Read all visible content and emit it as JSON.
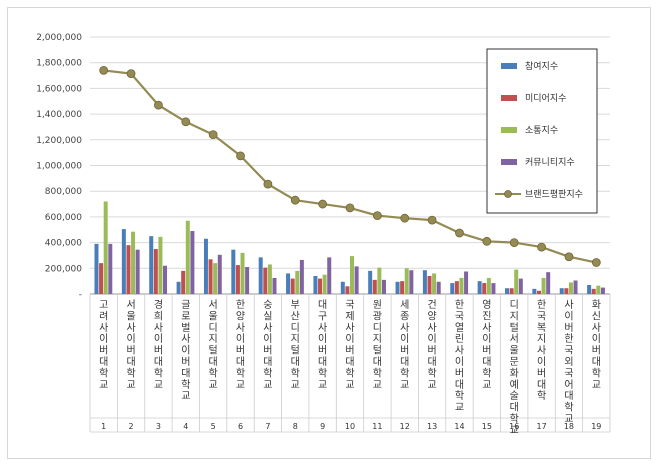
{
  "chart_data": {
    "type": "bar",
    "title": "",
    "xlabel": "",
    "ylabel": "",
    "ylim": [
      0,
      2000000
    ],
    "y_ticks": [
      "-",
      "200,000",
      "400,000",
      "600,000",
      "800,000",
      "1,000,000",
      "1,200,000",
      "1,400,000",
      "1,600,000",
      "1,800,000",
      "2,000,000"
    ],
    "grid": true,
    "legend_position": "right",
    "categories": [
      "고려사이버대학교",
      "서울사이버대학교",
      "경희사이버대학교",
      "글로벌사이버대학교",
      "서울디지털대학교",
      "한양사이버대학교",
      "숭실사이버대학교",
      "부산디지털대학교",
      "대구사이버대학교",
      "국제사이버대학교",
      "원광디지털대학교",
      "세종사이버대학교",
      "건양사이버대학교",
      "한국열린사이버대학교",
      "영진사이버대학교",
      "디지털서울문화예술대학교",
      "한국복지사이버대학",
      "사이버한국외국어대학교",
      "화신사이버대학교"
    ],
    "index_labels": [
      "1",
      "2",
      "3",
      "4",
      "5",
      "6",
      "7",
      "8",
      "9",
      "10",
      "11",
      "12",
      "13",
      "14",
      "15",
      "16",
      "17",
      "18",
      "19"
    ],
    "series": [
      {
        "name": "참여지수",
        "kind": "bar",
        "color": "#4a7ebb",
        "values": [
          390000,
          505000,
          450000,
          95000,
          430000,
          345000,
          285000,
          160000,
          140000,
          95000,
          180000,
          95000,
          185000,
          85000,
          100000,
          45000,
          40000,
          45000,
          70000
        ]
      },
      {
        "name": "미디어지수",
        "kind": "bar",
        "color": "#c0504d",
        "values": [
          240000,
          380000,
          350000,
          180000,
          270000,
          225000,
          205000,
          120000,
          120000,
          60000,
          110000,
          100000,
          140000,
          100000,
          85000,
          45000,
          25000,
          45000,
          40000
        ]
      },
      {
        "name": "소통지수",
        "kind": "bar",
        "color": "#9bbb59",
        "values": [
          720000,
          485000,
          445000,
          570000,
          240000,
          320000,
          230000,
          180000,
          150000,
          295000,
          205000,
          200000,
          160000,
          125000,
          125000,
          190000,
          125000,
          90000,
          65000
        ]
      },
      {
        "name": "커뮤니티지수",
        "kind": "bar",
        "color": "#8064a2",
        "values": [
          390000,
          345000,
          220000,
          490000,
          305000,
          210000,
          125000,
          265000,
          285000,
          215000,
          110000,
          185000,
          95000,
          175000,
          85000,
          120000,
          170000,
          105000,
          50000
        ]
      },
      {
        "name": "브랜드평판지수",
        "kind": "line",
        "color": "#948a54",
        "values": [
          1740000,
          1715000,
          1470000,
          1340000,
          1240000,
          1075000,
          855000,
          730000,
          700000,
          670000,
          610000,
          590000,
          575000,
          475000,
          410000,
          400000,
          365000,
          290000,
          245000
        ]
      }
    ]
  }
}
